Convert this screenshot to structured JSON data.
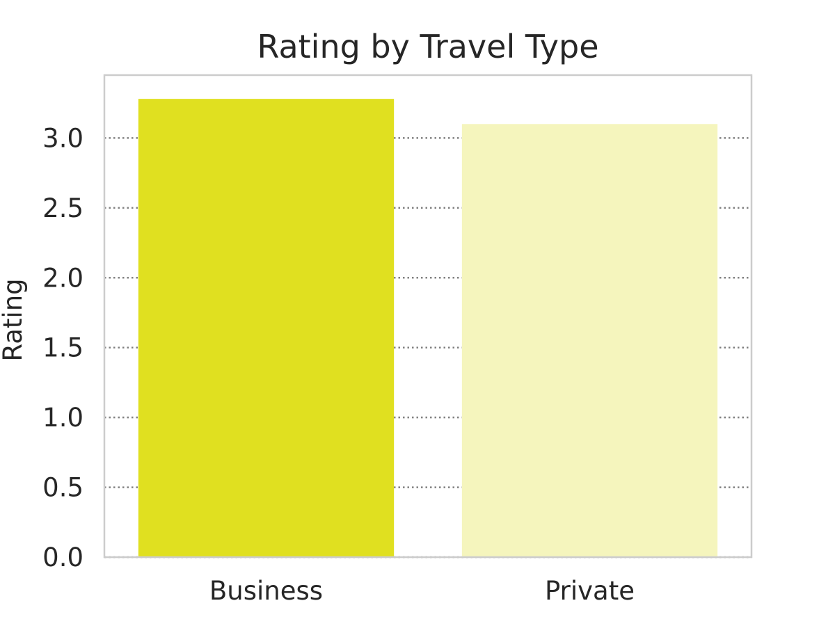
{
  "chart_data": {
    "type": "bar",
    "title": "Rating by Travel Type",
    "xlabel": "",
    "ylabel": "Rating",
    "categories": [
      "Business",
      "Private"
    ],
    "values": [
      3.28,
      3.1
    ],
    "ylim": [
      0,
      3.45
    ],
    "yticks": [
      "0.0",
      "0.5",
      "1.0",
      "1.5",
      "2.0",
      "2.5",
      "3.0"
    ],
    "colors": {
      "bars": [
        "#e0e020",
        "#f5f5bd"
      ],
      "grid": "#808080",
      "spine": "#cccccc",
      "text": "#262626"
    },
    "grid": true,
    "grid_style": "dotted",
    "legend": "none"
  }
}
